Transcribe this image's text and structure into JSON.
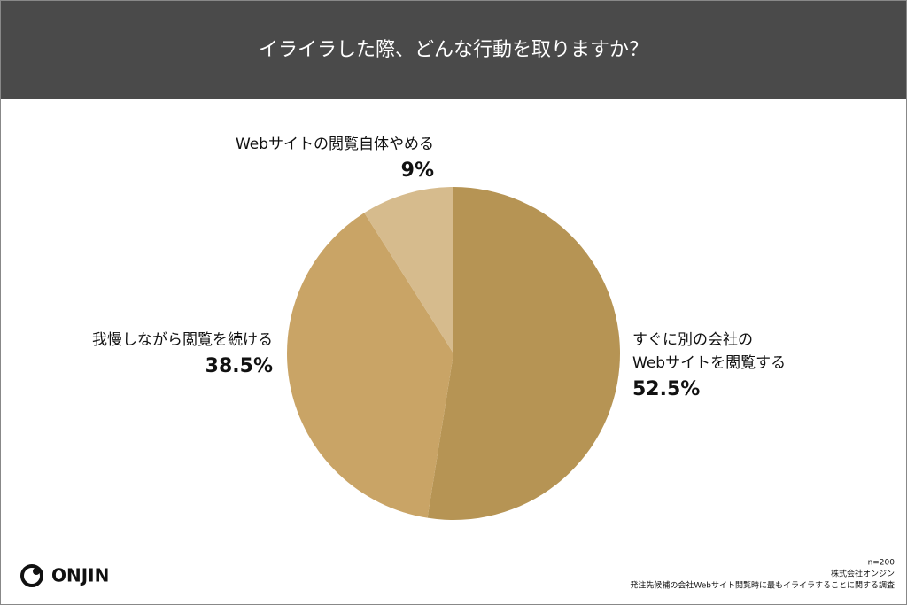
{
  "chart_data": {
    "type": "pie",
    "title": "イライラした際、どんな行動を取りますか？",
    "categories": [
      [
        "すぐに別の会社の",
        "Webサイトを閲覧する"
      ],
      [
        "我慢しながら閲覧を続ける"
      ],
      [
        "Webサイトの閲覧自体やめる"
      ]
    ],
    "values": [
      52.5,
      38.5,
      9
    ],
    "value_labels": [
      "52.5%",
      "38.5%",
      "9%"
    ],
    "colors": [
      "#b69454",
      "#c9a466",
      "#d6bb8d"
    ]
  },
  "logo": "ONJIN",
  "footer": [
    "n=200",
    "株式会社オンジン",
    "発注先候補の会社Webサイト閲覧時に最もイライラすることに関する調査"
  ]
}
